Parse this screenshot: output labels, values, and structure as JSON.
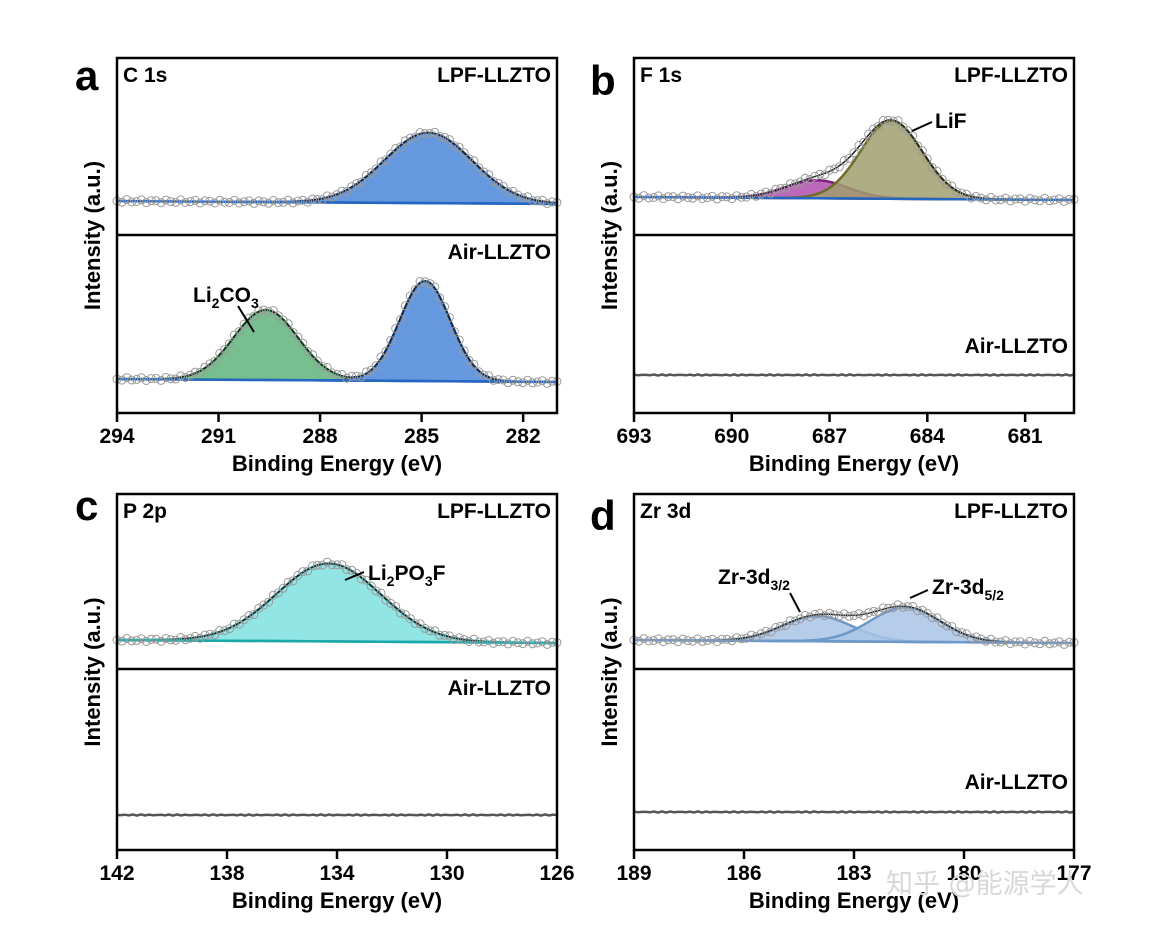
{
  "chart_data": [
    {
      "panel": "a",
      "type": "line",
      "element_label": "C 1s",
      "xlabel": "Binding Energy (eV)",
      "ylabel": "Intensity (a.u.)",
      "xlim": [
        294,
        281
      ],
      "x_ticks": [
        "294",
        "291",
        "288",
        "285",
        "282"
      ],
      "colors": {
        "fit": "#4a86d9",
        "fit_line": "#2566c2",
        "li2co3": "#5fb47b",
        "li2co3_line": "#2f9a55",
        "label": "#2f9a55"
      },
      "samples": [
        {
          "name": "LPF-LLZTO",
          "peaks": [
            {
              "center": 284.8,
              "height": 0.95,
              "width": 1.3,
              "color": "fit"
            }
          ]
        },
        {
          "name": "Air-LLZTO",
          "peaks": [
            {
              "center": 289.6,
              "height": 0.7,
              "width": 0.95,
              "color": "li2co3"
            },
            {
              "center": 284.9,
              "height": 1.0,
              "width": 0.75,
              "color": "fit"
            }
          ]
        }
      ],
      "annotations": [
        {
          "text": "Li",
          "sub1": "2",
          "mid": "CO",
          "sub2": "3",
          "at_x": 289.6,
          "color": "label"
        }
      ]
    },
    {
      "panel": "b",
      "type": "line",
      "element_label": "F 1s",
      "xlabel": "Binding Energy (eV)",
      "ylabel": "Intensity (a.u.)",
      "xlim": [
        693,
        679.5
      ],
      "x_ticks": [
        "693",
        "690",
        "687",
        "684",
        "681"
      ],
      "colors": {
        "lif": "#a19f6e",
        "lif_line": "#6f6d2a",
        "minor": "#b04fb0",
        "minor_line": "#7d1f7d",
        "label": "#807a1e",
        "flat": "#555555"
      },
      "samples": [
        {
          "name": "LPF-LLZTO",
          "peaks": [
            {
              "center": 687.4,
              "height": 0.22,
              "width": 0.95,
              "color": "minor"
            },
            {
              "center": 685.1,
              "height": 0.95,
              "width": 0.95,
              "color": "lif"
            }
          ]
        },
        {
          "name": "Air-LLZTO",
          "peaks": []
        }
      ],
      "annotations": [
        {
          "text": "LiF",
          "at_x": 685.0,
          "color": "label"
        }
      ]
    },
    {
      "panel": "c",
      "type": "line",
      "element_label": "P 2p",
      "xlabel": "Binding Energy (eV)",
      "ylabel": "Intensity (a.u.)",
      "xlim": [
        142,
        126
      ],
      "x_ticks": [
        "142",
        "138",
        "134",
        "130",
        "126"
      ],
      "colors": {
        "fit": "#7fe0e0",
        "fit_line": "#1aa8a8",
        "label": "#29c2c2",
        "flat": "#555555"
      },
      "samples": [
        {
          "name": "LPF-LLZTO",
          "peaks": [
            {
              "center": 134.3,
              "height": 0.95,
              "width": 1.9,
              "color": "fit"
            }
          ]
        },
        {
          "name": "Air-LLZTO",
          "peaks": []
        }
      ],
      "annotations": [
        {
          "text": "Li",
          "sub1": "2",
          "mid": "PO",
          "sub2": "3",
          "tail": "F",
          "at_x": 134.0,
          "color": "label"
        }
      ]
    },
    {
      "panel": "d",
      "type": "line",
      "element_label": "Zr 3d",
      "xlabel": "Binding Energy (eV)",
      "ylabel": "Intensity (a.u.)",
      "xlim": [
        189,
        177
      ],
      "x_ticks": [
        "189",
        "186",
        "183",
        "180",
        "177"
      ],
      "colors": {
        "fit": "#a9c4e6",
        "fit_line": "#6d98c9",
        "label": "#6d98c9",
        "flat": "#555555"
      },
      "samples": [
        {
          "name": "LPF-LLZTO",
          "peaks": [
            {
              "center": 184.0,
              "height": 0.55,
              "width": 0.95,
              "color": "fit"
            },
            {
              "center": 181.6,
              "height": 0.75,
              "width": 0.95,
              "color": "fit"
            }
          ]
        },
        {
          "name": "Air-LLZTO",
          "peaks": []
        }
      ],
      "annotations": [
        {
          "text": "Zr-3d",
          "sub": "3/2",
          "at_x": 184.3,
          "color": "label"
        },
        {
          "text": "Zr-3d",
          "sub": "5/2",
          "at_x": 181.4,
          "color": "label"
        }
      ]
    }
  ],
  "watermark": "知乎 @能源学人"
}
